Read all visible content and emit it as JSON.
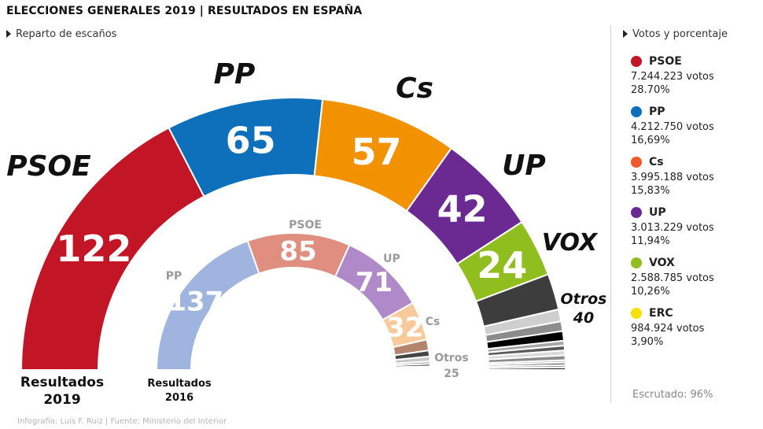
{
  "header": {
    "title": "ELECCIONES GENERALES 2019 | RESULTADOS EN ESPAÑA",
    "left_subtitle": "Reparto de escaños",
    "right_subtitle": "Votos y porcentaje"
  },
  "chart_data": [
    {
      "type": "semicircle-parliament",
      "label": "Resultados 2019",
      "categories": [
        "PSOE",
        "PP",
        "Cs",
        "UP",
        "VOX",
        "Otros"
      ],
      "values": [
        122,
        65,
        57,
        42,
        24,
        40
      ],
      "colors": [
        "#c21626",
        "#0e6fba",
        "#f29200",
        "#6b2a91",
        "#8fbe1e",
        "#3d3d3d"
      ],
      "otros_breakdown": [
        15,
        5,
        4,
        4,
        2,
        2,
        2,
        2,
        1,
        1,
        1,
        1
      ],
      "otros_colors": [
        "#3d3d3d",
        "#cfcfcf",
        "#8c8c8c",
        "#000000",
        "#a8a8a8",
        "#5a5a5a",
        "#d9d9d9",
        "#8c8c8c",
        "#bcbcbc",
        "#444444",
        "#9a9a9a",
        "#222222"
      ]
    },
    {
      "type": "semicircle-parliament",
      "label": "Resultados 2016",
      "categories": [
        "PP",
        "PSOE",
        "UP",
        "Cs",
        "Otros"
      ],
      "values": [
        137,
        85,
        71,
        32,
        25
      ],
      "colors": [
        "#9fb4de",
        "#df8e7f",
        "#b08ac8",
        "#f8c99b",
        "#a9a9a9"
      ],
      "otros_breakdown": [
        9,
        5,
        4,
        2,
        2,
        1,
        1,
        1
      ],
      "otros_colors": [
        "#b2856c",
        "#444444",
        "#c7c7c7",
        "#8c8c8c",
        "#222222",
        "#a8a8a8",
        "#555555",
        "#d0d0d0"
      ]
    }
  ],
  "labels": {
    "outer_2019": [
      "PSOE",
      "PP",
      "Cs",
      "UP",
      "VOX",
      "Otros",
      "40"
    ],
    "inner_2016": [
      "PP",
      "PSOE",
      "UP",
      "Cs",
      "Otros",
      "25"
    ],
    "result_2019": [
      "Resultados",
      "2019"
    ],
    "result_2016": [
      "Resultados",
      "2016"
    ]
  },
  "legend": [
    {
      "party": "PSOE",
      "votes": "7.244.223 votos",
      "pct": "28.70%",
      "color": "#c21626"
    },
    {
      "party": "PP",
      "votes": "4.212.750 votos",
      "pct": "16,69%",
      "color": "#0e6fba"
    },
    {
      "party": "Cs",
      "votes": "3.995.188 votos",
      "pct": "15,83%",
      "color": "#ee5a2a"
    },
    {
      "party": "UP",
      "votes": "3.013.229 votos",
      "pct": "11,94%",
      "color": "#6b2a91"
    },
    {
      "party": "VOX",
      "votes": "2.588.785 votos",
      "pct": "10,26%",
      "color": "#8fbe1e"
    },
    {
      "party": "ERC",
      "votes": "984.924 votos",
      "pct": "3,90%",
      "color": "#f5e100"
    }
  ],
  "scrutiny": "Escrutado: 96%",
  "credits": "Infografía: Luis F. Ruiz | Fuente: Ministerio del Interior"
}
